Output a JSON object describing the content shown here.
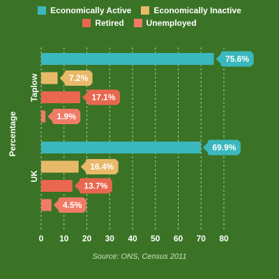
{
  "chart_data": {
    "type": "bar",
    "orientation": "horizontal",
    "ylabel": "Percentage",
    "xlim": [
      0,
      80
    ],
    "xticks": [
      0,
      10,
      20,
      30,
      40,
      50,
      60,
      70,
      80
    ],
    "grid": "vertical dashed",
    "legend_position": "top",
    "source": "Source: ONS, Census 2011",
    "categories": [
      "Taplow",
      "UK"
    ],
    "series": [
      {
        "name": "Economically Active",
        "color": "#3bb8bd",
        "values": [
          75.6,
          69.9
        ],
        "labels": [
          "75.6%",
          "69.9%"
        ]
      },
      {
        "name": "Economically Inactive",
        "color": "#e9b96a",
        "values": [
          7.2,
          16.4
        ],
        "labels": [
          "7.2%",
          "16.4%"
        ]
      },
      {
        "name": "Retired",
        "color": "#e8674e",
        "values": [
          17.1,
          13.7
        ],
        "labels": [
          "17.1%",
          "13.7%"
        ]
      },
      {
        "name": "Unemployed",
        "color": "#f07c67",
        "values": [
          1.9,
          4.5
        ],
        "labels": [
          "1.9%",
          "4.5%"
        ]
      }
    ]
  }
}
